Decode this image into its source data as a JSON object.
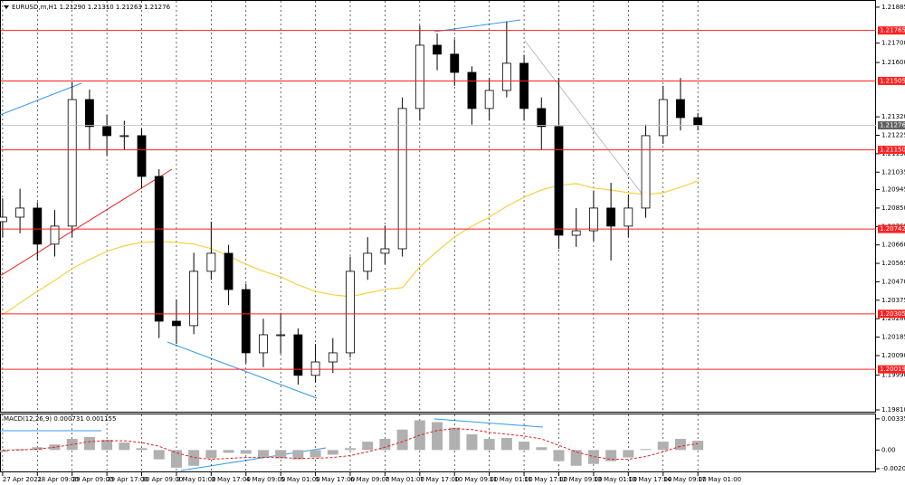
{
  "chart_data": {
    "type": "candlestick",
    "title": "EURUSD,m,H1  1.21290 1.21310 1.21263 1.21276",
    "x": [
      0,
      4,
      8,
      12,
      16,
      20,
      24,
      28,
      32,
      36,
      40,
      44,
      48,
      52,
      56,
      60,
      64,
      68,
      72,
      76,
      80,
      84,
      88,
      92,
      96,
      100,
      104,
      108,
      112,
      116,
      120,
      124,
      128,
      132,
      136,
      140,
      144,
      148,
      152,
      156,
      160
    ],
    "xlim": [
      -0.6,
      201
    ],
    "xticks": [
      {
        "value": 0,
        "label": "27 Apr 2021"
      },
      {
        "value": 8,
        "label": "28 Apr 09:00"
      },
      {
        "value": 16,
        "label": "29 Apr 09:00"
      },
      {
        "value": 24,
        "label": "29 Apr 17:00"
      },
      {
        "value": 32,
        "label": "30 Apr 09:00"
      },
      {
        "value": 40,
        "label": "3 May 01:00"
      },
      {
        "value": 48,
        "label": "3 May 17:00"
      },
      {
        "value": 56,
        "label": "4 May 09:00"
      },
      {
        "value": 64,
        "label": "5 May 01:00"
      },
      {
        "value": 72,
        "label": "5 May 17:00"
      },
      {
        "value": 80,
        "label": "6 May 09:00"
      },
      {
        "value": 88,
        "label": "7 May 01:00"
      },
      {
        "value": 96,
        "label": "7 May 17:00"
      },
      {
        "value": 104,
        "label": "10 May 09:00"
      },
      {
        "value": 112,
        "label": "11 May 01:00"
      },
      {
        "value": 120,
        "label": "11 May 17:00"
      },
      {
        "value": 128,
        "label": "12 May 09:00"
      },
      {
        "value": 136,
        "label": "13 May 01:00"
      },
      {
        "value": 144,
        "label": "13 May 17:00"
      },
      {
        "value": 152,
        "label": "14 May 09:00"
      },
      {
        "value": 160,
        "label": "17 May 01:00"
      }
    ],
    "open": [
      1.2078,
      1.20803,
      1.2085,
      1.20664,
      1.20757,
      1.21409,
      1.2127,
      1.21223,
      1.21223,
      1.21013,
      1.20267,
      1.20244,
      1.20524,
      1.20617,
      1.2043,
      1.20104,
      1.20197,
      1.20197,
      1.19988,
      1.20057,
      1.20104,
      1.20524,
      1.20617,
      1.2064,
      1.21363,
      1.21689,
      1.21643,
      1.21549,
      1.21363,
      1.21456,
      1.21596,
      1.21363,
      1.2127,
      1.2071,
      1.20733,
      1.2085,
      1.20757,
      1.2085,
      1.21223,
      1.21409,
      1.21316
    ],
    "high": [
      1.209,
      1.2095,
      1.2088,
      1.2084,
      1.215,
      1.2146,
      1.2133,
      1.213,
      1.2126,
      1.2105,
      1.2038,
      1.2062,
      1.2078,
      1.2066,
      1.2046,
      1.2028,
      1.2031,
      1.2023,
      1.2015,
      1.2018,
      1.206,
      1.207,
      1.2076,
      1.2142,
      1.2179,
      1.2175,
      1.2172,
      1.2158,
      1.2152,
      1.2181,
      1.2164,
      1.2142,
      1.2152,
      1.2085,
      1.2094,
      1.2098,
      1.2092,
      1.2128,
      1.2148,
      1.2152,
      1.2134
    ],
    "low": [
      1.207,
      1.2072,
      1.2058,
      1.206,
      1.207,
      1.2115,
      1.2112,
      1.2115,
      1.2095,
      1.2018,
      1.2015,
      1.202,
      1.2048,
      1.2035,
      1.2005,
      1.2003,
      1.201,
      1.1994,
      1.1995,
      1.2,
      1.2008,
      1.2048,
      1.2056,
      1.206,
      1.213,
      1.2156,
      1.2148,
      1.2128,
      1.213,
      1.2142,
      1.213,
      1.2115,
      1.2064,
      1.2065,
      1.2068,
      1.2058,
      1.207,
      1.208,
      1.2118,
      1.2125,
      1.2125
    ],
    "close": [
      1.20803,
      1.2085,
      1.20664,
      1.20757,
      1.21409,
      1.2127,
      1.21223,
      1.21223,
      1.21013,
      1.20267,
      1.20244,
      1.20524,
      1.20617,
      1.2043,
      1.20104,
      1.20197,
      1.20197,
      1.19988,
      1.20057,
      1.20104,
      1.20524,
      1.20617,
      1.2064,
      1.21363,
      1.21689,
      1.21643,
      1.21549,
      1.21363,
      1.21456,
      1.21596,
      1.21363,
      1.2127,
      1.2071,
      1.20733,
      1.2085,
      1.20757,
      1.2085,
      1.21223,
      1.21409,
      1.21316,
      1.21276
    ],
    "moving_average": {
      "color": "#f5d142",
      "values": [
        1.203,
        1.20361,
        1.20421,
        1.20477,
        1.20538,
        1.20585,
        1.20627,
        1.20655,
        1.20673,
        1.20678,
        1.20673,
        1.20664,
        1.20641,
        1.20603,
        1.20561,
        1.20524,
        1.20496,
        1.20454,
        1.20421,
        1.20403,
        1.20393,
        1.20412,
        1.20431,
        1.2044,
        1.20547,
        1.20627,
        1.20701,
        1.20757,
        1.20803,
        1.20859,
        1.20906,
        1.20943,
        1.20967,
        1.20976,
        1.20953,
        1.20943,
        1.20929,
        1.2092,
        1.20929,
        1.20957,
        1.2099
      ]
    },
    "ylim": [
      1.19796,
      1.21922
    ],
    "yticks": [
      1.21885,
      {
        "value": 1.217,
        "label": "1.21700"
      },
      {
        "value": 1.216,
        "label": "1.21600"
      },
      {
        "value": 1.2132,
        "label": "1.21320"
      },
      1.21225,
      {
        "value": 1.2113,
        "label": "1.21130"
      },
      1.21035,
      1.20945,
      {
        "value": 1.2085,
        "label": "1.20850"
      },
      1.20755,
      {
        "value": 1.2066,
        "label": "1.20660"
      },
      1.20565,
      {
        "value": 1.2047,
        "label": "1.20470"
      },
      1.20375,
      {
        "value": 1.2028,
        "label": "1.20280"
      },
      1.20185,
      {
        "value": 1.2009,
        "label": "1.20090"
      },
      {
        "value": 1.1999,
        "label": "1.19990"
      },
      {
        "value": 1.1981,
        "label": "1.19810"
      }
    ],
    "levels": [
      1.21765,
      1.21505,
      {
        "value": 1.2115,
        "label": "1.21150"
      },
      1.20742,
      1.20305,
      1.20019
    ],
    "level_color": "#ff2020",
    "last_price": 1.21276,
    "up_color": "#ffffff",
    "down_color": "#000000",
    "macd": {
      "label": "MACD(12,26,9) 0.000731 0.001155",
      "ylim": [
        -0.0024,
        0.00383
      ],
      "yticks": [
        0.003353,
        {
          "value": 0,
          "label": "0.00"
        },
        -0.002014
      ],
      "histogram": [
        -0.0002,
        0.0001,
        0.0003,
        0.0006,
        0.0012,
        0.0014,
        0.0011,
        0.0008,
        0.0002,
        -0.001,
        -0.0019,
        -0.0017,
        -0.0009,
        -0.0003,
        -0.0004,
        -0.0008,
        -0.0009,
        -0.001,
        -0.0008,
        -0.0005,
        0.0002,
        0.0009,
        0.0012,
        0.0022,
        0.0032,
        0.003,
        0.0024,
        0.0017,
        0.0012,
        0.0013,
        0.0009,
        0.0003,
        -0.0012,
        -0.0017,
        -0.0015,
        -0.0012,
        -0.0008,
        0.0001,
        0.0009,
        0.0012,
        0.001
      ],
      "signal": [
        0,
        0,
        0.0001,
        0.0003,
        0.0006,
        0.0009,
        0.001,
        0.001,
        0.0008,
        0.0004,
        -0.0003,
        -0.0008,
        -0.001,
        -0.0009,
        -0.0008,
        -0.0008,
        -0.0008,
        -0.0009,
        -0.0009,
        -0.0008,
        -0.0006,
        -0.0002,
        0.0003,
        0.0009,
        0.0016,
        0.0021,
        0.0023,
        0.0022,
        0.0019,
        0.0017,
        0.0015,
        0.0012,
        0.0005,
        -0.0002,
        -0.0007,
        -0.001,
        -0.001,
        -0.0007,
        -0.0002,
        0.0004,
        0.0007
      ],
      "histogram_color": "#b0b0b0",
      "signal_color": "#e02020"
    }
  }
}
